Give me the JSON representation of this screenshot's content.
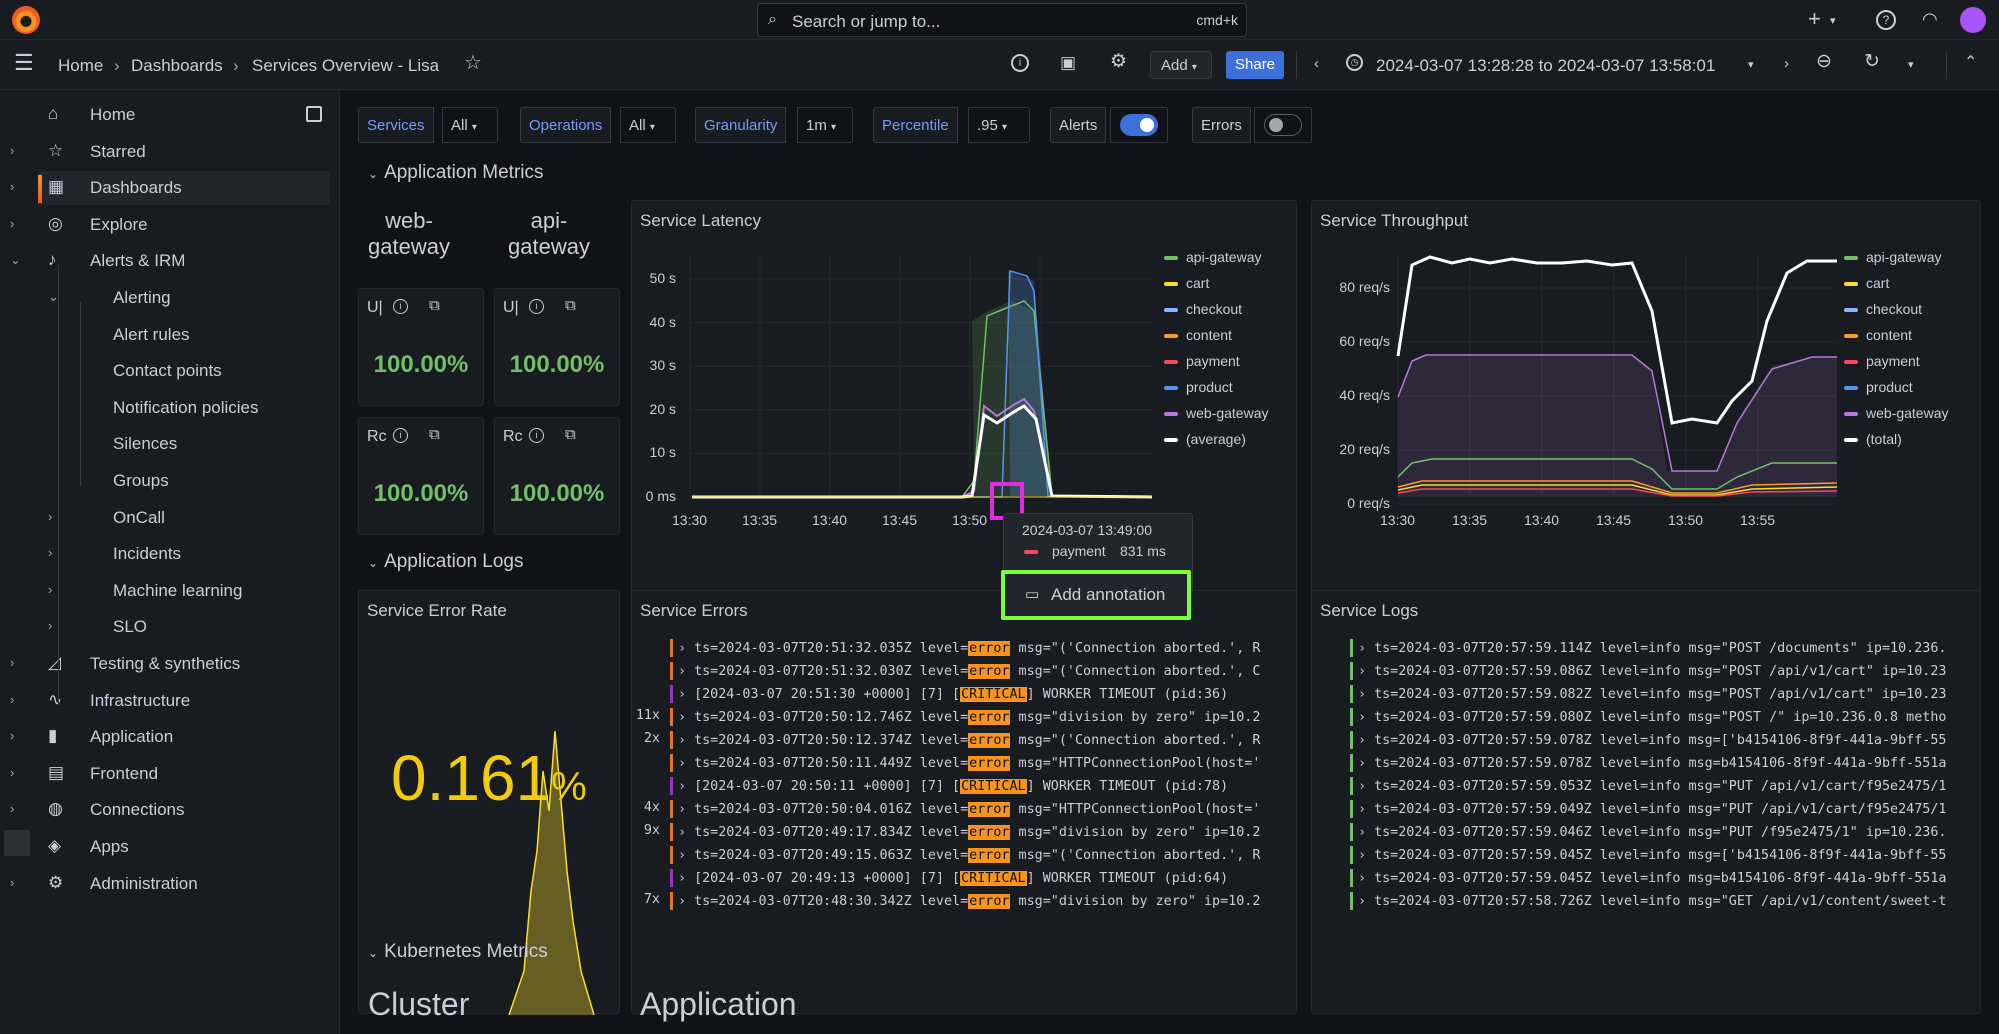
{
  "topbar": {
    "search_placeholder": "Search or jump to...",
    "search_shortcut": "cmd+k",
    "icons": [
      "grafana-logo-icon",
      "plus-icon",
      "help-icon",
      "rss-icon",
      "user-avatar"
    ]
  },
  "breadcrumb": {
    "home": "Home",
    "dashboards": "Dashboards",
    "current": "Services Overview - Lisa"
  },
  "toolbar": {
    "add_label": "Add",
    "share_label": "Share",
    "time_range": "2024-03-07 13:28:28 to 2024-03-07 13:58:01"
  },
  "sidebar": {
    "items": [
      {
        "label": "Home",
        "icon": "home-icon",
        "indent": 0,
        "chevron": ""
      },
      {
        "label": "Starred",
        "icon": "star-icon",
        "indent": 0,
        "chevron": "›"
      },
      {
        "label": "Dashboards",
        "icon": "grid-icon",
        "indent": 0,
        "chevron": "›",
        "active": true
      },
      {
        "label": "Explore",
        "icon": "compass-icon",
        "indent": 0,
        "chevron": "›"
      },
      {
        "label": "Alerts & IRM",
        "icon": "bell-icon",
        "indent": 0,
        "chevron": "⌄"
      },
      {
        "label": "Alerting",
        "icon": "",
        "indent": 1,
        "chevron": "⌄"
      },
      {
        "label": "Alert rules",
        "icon": "",
        "indent": 2,
        "chevron": ""
      },
      {
        "label": "Contact points",
        "icon": "",
        "indent": 2,
        "chevron": ""
      },
      {
        "label": "Notification policies",
        "icon": "",
        "indent": 2,
        "chevron": ""
      },
      {
        "label": "Silences",
        "icon": "",
        "indent": 2,
        "chevron": ""
      },
      {
        "label": "Groups",
        "icon": "",
        "indent": 2,
        "chevron": ""
      },
      {
        "label": "OnCall",
        "icon": "",
        "indent": 1,
        "chevron": "›"
      },
      {
        "label": "Incidents",
        "icon": "",
        "indent": 1,
        "chevron": "›"
      },
      {
        "label": "Machine learning",
        "icon": "",
        "indent": 1,
        "chevron": "›"
      },
      {
        "label": "SLO",
        "icon": "",
        "indent": 1,
        "chevron": "›"
      },
      {
        "label": "Testing & synthetics",
        "icon": "chart-icon",
        "indent": 0,
        "chevron": "›"
      },
      {
        "label": "Infrastructure",
        "icon": "pulse-icon",
        "indent": 0,
        "chevron": "›"
      },
      {
        "label": "Application",
        "icon": "bars-icon",
        "indent": 0,
        "chevron": "›"
      },
      {
        "label": "Frontend",
        "icon": "frontend-icon",
        "indent": 0,
        "chevron": "›"
      },
      {
        "label": "Connections",
        "icon": "connections-icon",
        "indent": 0,
        "chevron": "›"
      },
      {
        "label": "Apps",
        "icon": "layers-icon",
        "indent": 0,
        "chevron": "›"
      },
      {
        "label": "Administration",
        "icon": "gear-icon",
        "indent": 0,
        "chevron": "›"
      }
    ]
  },
  "variables": {
    "services_label": "Services",
    "services_value": "All",
    "operations_label": "Operations",
    "operations_value": "All",
    "granularity_label": "Granularity",
    "granularity_value": "1m",
    "percentile_label": "Percentile",
    "percentile_value": ".95",
    "alerts_label": "Alerts",
    "alerts_on": true,
    "errors_label": "Errors",
    "errors_on": false
  },
  "sections": {
    "app_metrics": "Application Metrics",
    "app_logs": "Application Logs",
    "k8s_metrics": "Kubernetes Metrics",
    "cluster": "Cluster",
    "application": "Application"
  },
  "stats": {
    "web_gateway_title": "web-gateway",
    "api_gateway_title": "api-gateway",
    "uptime_label": "U|",
    "requests_label": "Rc",
    "web_uptime": "100.00%",
    "api_uptime": "100.00%",
    "web_requests": "100.00%",
    "api_requests": "100.00%"
  },
  "latency_panel": {
    "title": "Service Latency",
    "legend": [
      "api-gateway",
      "cart",
      "checkout",
      "content",
      "payment",
      "product",
      "web-gateway",
      "(average)"
    ],
    "colors": [
      "#73bf69",
      "#fade2a",
      "#8ab8ff",
      "#ff9830",
      "#f2495c",
      "#5794f2",
      "#b877d9",
      "#ffffff"
    ],
    "y_ticks": [
      "50 s",
      "40 s",
      "30 s",
      "20 s",
      "10 s",
      "0 ms"
    ],
    "x_ticks": [
      "13:30",
      "13:35",
      "13:40",
      "13:45",
      "13:50",
      "13:55"
    ]
  },
  "throughput_panel": {
    "title": "Service Throughput",
    "legend": [
      "api-gateway",
      "cart",
      "checkout",
      "content",
      "payment",
      "product",
      "web-gateway",
      "(total)"
    ],
    "y_ticks": [
      "80 req/s",
      "60 req/s",
      "40 req/s",
      "20 req/s",
      "0 req/s"
    ],
    "x_ticks": [
      "13:30",
      "13:35",
      "13:40",
      "13:45",
      "13:50",
      "13:55"
    ]
  },
  "tooltip": {
    "time": "2024-03-07 13:49:00",
    "series": "payment",
    "value": "831 ms",
    "annotation_label": "Add annotation"
  },
  "error_rate_panel": {
    "title": "Service Error Rate",
    "value": "0.161",
    "unit": "%"
  },
  "errors_panel": {
    "title": "Service Errors",
    "lines": [
      {
        "count": "",
        "pre": "ts=2024-03-07T20:51:32.035Z level=",
        "level": "error",
        "post": " msg=\"('Connection aborted.', R",
        "color": "#e0752d"
      },
      {
        "count": "",
        "pre": "ts=2024-03-07T20:51:32.030Z level=",
        "level": "error",
        "post": " msg=\"('Connection aborted.', C",
        "color": "#e0752d"
      },
      {
        "count": "",
        "pre": "[2024-03-07 20:51:30 +0000] [7] [",
        "level": "CRITICAL",
        "post": "] WORKER TIMEOUT (pid:36)",
        "color": "#8f3bb8"
      },
      {
        "count": "11x",
        "pre": "ts=2024-03-07T20:50:12.746Z level=",
        "level": "error",
        "post": " msg=\"division by zero\" ip=10.2",
        "color": "#e0752d"
      },
      {
        "count": "2x",
        "pre": "ts=2024-03-07T20:50:12.374Z level=",
        "level": "error",
        "post": " msg=\"('Connection aborted.', R",
        "color": "#e0752d"
      },
      {
        "count": "",
        "pre": "ts=2024-03-07T20:50:11.449Z level=",
        "level": "error",
        "post": " msg=\"HTTPConnectionPool(host='",
        "color": "#e0752d"
      },
      {
        "count": "",
        "pre": "[2024-03-07 20:50:11 +0000] [7] [",
        "level": "CRITICAL",
        "post": "] WORKER TIMEOUT (pid:78)",
        "color": "#8f3bb8"
      },
      {
        "count": "4x",
        "pre": "ts=2024-03-07T20:50:04.016Z level=",
        "level": "error",
        "post": " msg=\"HTTPConnectionPool(host='",
        "color": "#e0752d"
      },
      {
        "count": "9x",
        "pre": "ts=2024-03-07T20:49:17.834Z level=",
        "level": "error",
        "post": " msg=\"division by zero\" ip=10.2",
        "color": "#e0752d"
      },
      {
        "count": "",
        "pre": "ts=2024-03-07T20:49:15.063Z level=",
        "level": "error",
        "post": " msg=\"('Connection aborted.', R",
        "color": "#e0752d"
      },
      {
        "count": "",
        "pre": "[2024-03-07 20:49:13 +0000] [7] [",
        "level": "CRITICAL",
        "post": "] WORKER TIMEOUT (pid:64)",
        "color": "#8f3bb8"
      },
      {
        "count": "7x",
        "pre": "ts=2024-03-07T20:48:30.342Z level=",
        "level": "error",
        "post": " msg=\"division by zero\" ip=10.2",
        "color": "#e0752d"
      }
    ]
  },
  "logs_panel": {
    "title": "Service Logs",
    "lines": [
      "ts=2024-03-07T20:57:59.114Z level=info msg=\"POST /documents\" ip=10.236.",
      "ts=2024-03-07T20:57:59.086Z level=info msg=\"POST /api/v1/cart\" ip=10.23",
      "ts=2024-03-07T20:57:59.082Z level=info msg=\"POST /api/v1/cart\" ip=10.23",
      "ts=2024-03-07T20:57:59.080Z level=info msg=\"POST /\" ip=10.236.0.8 metho",
      "ts=2024-03-07T20:57:59.078Z level=info msg=['b4154106-8f9f-441a-9bff-55",
      "ts=2024-03-07T20:57:59.078Z level=info msg=b4154106-8f9f-441a-9bff-551a",
      "ts=2024-03-07T20:57:59.053Z level=info msg=\"PUT /api/v1/cart/f95e2475/1",
      "ts=2024-03-07T20:57:59.049Z level=info msg=\"PUT /api/v1/cart/f95e2475/1",
      "ts=2024-03-07T20:57:59.046Z level=info msg=\"PUT /f95e2475/1\" ip=10.236.",
      "ts=2024-03-07T20:57:59.045Z level=info msg=['b4154106-8f9f-441a-9bff-55",
      "ts=2024-03-07T20:57:59.045Z level=info msg=b4154106-8f9f-441a-9bff-551a",
      "ts=2024-03-07T20:57:58.726Z level=info msg=\"GET /api/v1/content/sweet-t"
    ]
  }
}
